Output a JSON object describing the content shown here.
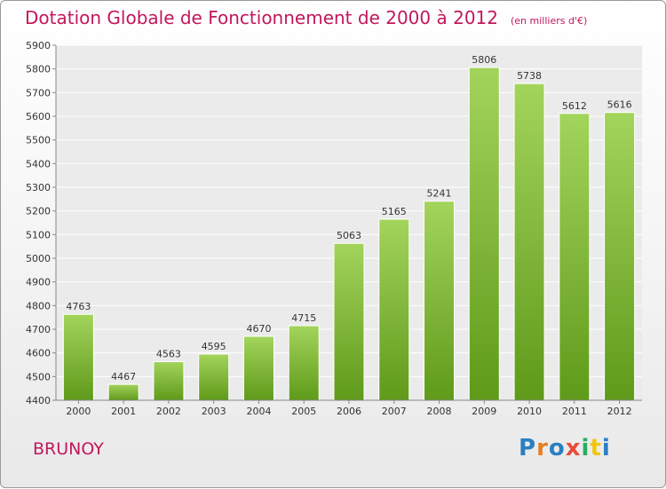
{
  "header": {
    "title": "Dotation Globale de Fonctionnement de 2000 à 2012",
    "subtitle": "(en milliers d'€)"
  },
  "footer": {
    "commune": "BRUNOY",
    "logo": "Proxiti"
  },
  "colors": {
    "title": "#c2185b",
    "bar_light": "#a3d45c",
    "bar_dark": "#5f9a1a"
  },
  "chart_data": {
    "type": "bar",
    "categories": [
      "2000",
      "2001",
      "2002",
      "2003",
      "2004",
      "2005",
      "2006",
      "2007",
      "2008",
      "2009",
      "2010",
      "2011",
      "2012"
    ],
    "values": [
      4763,
      4467,
      4563,
      4595,
      4670,
      4715,
      5063,
      5165,
      5241,
      5806,
      5738,
      5612,
      5616
    ],
    "title": "Dotation Globale de Fonctionnement de 2000 à 2012",
    "subtitle": "(en milliers d'€)",
    "ylim": [
      4400,
      5900
    ],
    "yticks": [
      4400,
      4500,
      4600,
      4700,
      4800,
      4900,
      5000,
      5100,
      5200,
      5300,
      5400,
      5500,
      5600,
      5700,
      5800,
      5900
    ],
    "grid": true,
    "data_labels": true
  }
}
